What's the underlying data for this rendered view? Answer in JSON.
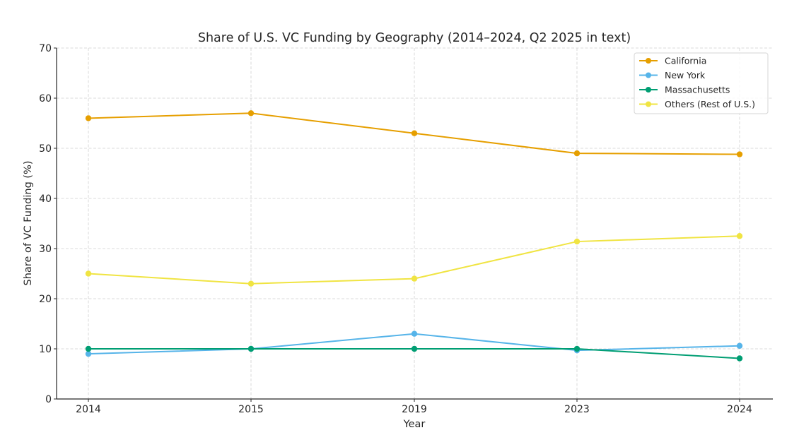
{
  "chart_data": {
    "type": "line",
    "title": "Share of U.S. VC Funding by Geography (2014–2024, Q2 2025 in text)",
    "xlabel": "Year",
    "ylabel": "Share of VC Funding (%)",
    "categories": [
      "2014",
      "2015",
      "2019",
      "2023",
      "2024"
    ],
    "ylim": [
      0,
      70
    ],
    "yticks": [
      0,
      10,
      20,
      30,
      40,
      50,
      60,
      70
    ],
    "grid": true,
    "legend_position": "top-right",
    "series": [
      {
        "name": "California",
        "color": "#E69F00",
        "values": [
          56,
          57,
          53,
          49,
          48.8
        ]
      },
      {
        "name": "New York",
        "color": "#56B4E9",
        "values": [
          9,
          10,
          13,
          9.7,
          10.6
        ]
      },
      {
        "name": "Massachusetts",
        "color": "#009E73",
        "values": [
          10,
          10,
          10,
          10,
          8.1
        ]
      },
      {
        "name": "Others (Rest of U.S.)",
        "color": "#F0E442",
        "values": [
          25,
          23,
          24,
          31.4,
          32.5
        ]
      }
    ]
  }
}
